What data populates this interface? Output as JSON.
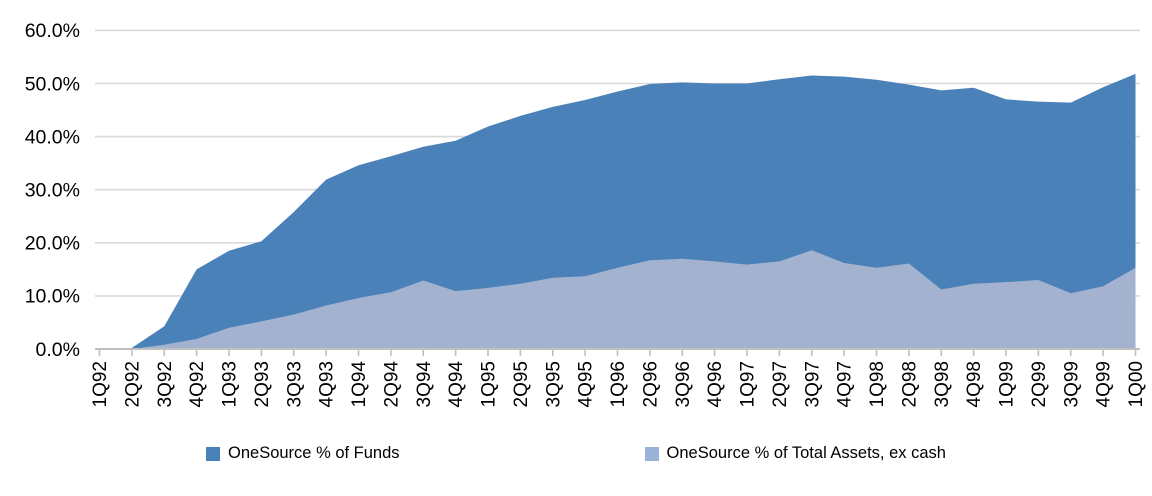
{
  "chart_data": {
    "type": "area",
    "mode": "overlapping",
    "title": "",
    "xlabel": "",
    "ylabel": "",
    "ylim": [
      0,
      60
    ],
    "y_tick_step": 10,
    "y_tick_labels": [
      "0.0%",
      "10.0%",
      "20.0%",
      "30.0%",
      "40.0%",
      "50.0%",
      "60.0%"
    ],
    "grid": "horizontal",
    "legend_position": "bottom",
    "categories": [
      "1Q92",
      "2Q92",
      "3Q92",
      "4Q92",
      "1Q93",
      "2Q93",
      "3Q93",
      "4Q93",
      "1Q94",
      "2Q94",
      "3Q94",
      "4Q94",
      "1Q95",
      "2Q95",
      "3Q95",
      "4Q95",
      "1Q96",
      "2Q96",
      "3Q96",
      "4Q96",
      "1Q97",
      "2Q97",
      "3Q97",
      "4Q97",
      "1Q98",
      "2Q98",
      "3Q98",
      "4Q98",
      "1Q99",
      "2Q99",
      "3Q99",
      "4Q99",
      "1Q00"
    ],
    "series": [
      {
        "name": "OneSource % of Funds",
        "color": "#4a81b9",
        "values": [
          0.0,
          0.2,
          4.3,
          15.0,
          18.5,
          20.3,
          25.8,
          31.9,
          34.6,
          36.3,
          38.1,
          39.2,
          41.9,
          43.9,
          45.6,
          46.9,
          48.5,
          49.9,
          50.2,
          50.0,
          50.0,
          50.8,
          51.5,
          51.3,
          50.7,
          49.8,
          48.7,
          49.2,
          47.0,
          46.6,
          46.4,
          49.3,
          51.8
        ]
      },
      {
        "name": "OneSource % of Total Assets, ex cash",
        "color": "#a2b2cf",
        "legend_color": "#9ab2d6",
        "values": [
          0.0,
          0.0,
          0.8,
          1.9,
          4.0,
          5.2,
          6.5,
          8.2,
          9.6,
          10.7,
          12.9,
          10.9,
          11.5,
          12.3,
          13.4,
          13.7,
          15.3,
          16.7,
          17.0,
          16.5,
          15.9,
          16.5,
          18.6,
          16.2,
          15.3,
          16.1,
          11.2,
          12.3,
          12.6,
          13.0,
          10.5,
          11.8,
          15.3
        ]
      }
    ],
    "axis_color": "#bfbfbf",
    "gridline_color": "#d9d9d9"
  }
}
